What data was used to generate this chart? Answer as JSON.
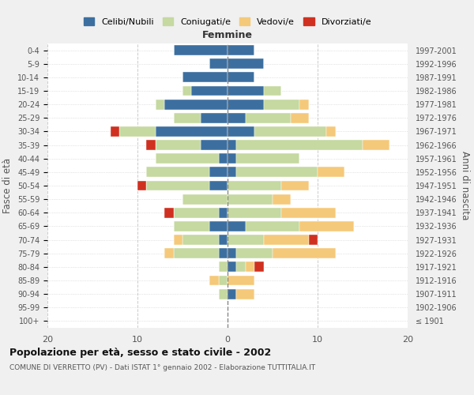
{
  "age_groups": [
    "100+",
    "95-99",
    "90-94",
    "85-89",
    "80-84",
    "75-79",
    "70-74",
    "65-69",
    "60-64",
    "55-59",
    "50-54",
    "45-49",
    "40-44",
    "35-39",
    "30-34",
    "25-29",
    "20-24",
    "15-19",
    "10-14",
    "5-9",
    "0-4"
  ],
  "birth_years": [
    "≤ 1901",
    "1902-1906",
    "1907-1911",
    "1912-1916",
    "1917-1921",
    "1922-1926",
    "1927-1931",
    "1932-1936",
    "1937-1941",
    "1942-1946",
    "1947-1951",
    "1952-1956",
    "1957-1961",
    "1962-1966",
    "1967-1971",
    "1972-1976",
    "1977-1981",
    "1982-1986",
    "1987-1991",
    "1992-1996",
    "1997-2001"
  ],
  "male": {
    "celibi": [
      0,
      0,
      0,
      0,
      0,
      1,
      1,
      2,
      1,
      0,
      2,
      2,
      1,
      3,
      8,
      3,
      7,
      4,
      5,
      2,
      6
    ],
    "coniugati": [
      0,
      0,
      1,
      1,
      1,
      5,
      4,
      4,
      5,
      5,
      7,
      7,
      7,
      5,
      4,
      3,
      1,
      1,
      0,
      0,
      0
    ],
    "vedovi": [
      0,
      0,
      0,
      1,
      0,
      1,
      1,
      0,
      0,
      0,
      0,
      0,
      0,
      0,
      0,
      0,
      0,
      0,
      0,
      0,
      0
    ],
    "divorziati": [
      0,
      0,
      0,
      0,
      0,
      0,
      0,
      0,
      1,
      0,
      1,
      0,
      0,
      1,
      1,
      0,
      0,
      0,
      0,
      0,
      0
    ]
  },
  "female": {
    "nubili": [
      0,
      0,
      1,
      0,
      1,
      1,
      0,
      2,
      0,
      0,
      0,
      1,
      1,
      1,
      3,
      2,
      4,
      4,
      3,
      4,
      3
    ],
    "coniugate": [
      0,
      0,
      0,
      0,
      1,
      4,
      4,
      6,
      6,
      5,
      6,
      9,
      7,
      14,
      8,
      5,
      4,
      2,
      0,
      0,
      0
    ],
    "vedove": [
      0,
      0,
      2,
      3,
      1,
      7,
      5,
      6,
      6,
      2,
      3,
      3,
      0,
      3,
      1,
      2,
      1,
      0,
      0,
      0,
      0
    ],
    "divorziate": [
      0,
      0,
      0,
      0,
      1,
      0,
      1,
      0,
      0,
      0,
      0,
      0,
      0,
      0,
      0,
      0,
      0,
      0,
      0,
      0,
      0
    ]
  },
  "colors": {
    "celibi": "#3c6fa0",
    "coniugati": "#c5d9a0",
    "vedovi": "#f5c97a",
    "divorziati": "#d03020"
  },
  "xlim": 20,
  "title": "Popolazione per età, sesso e stato civile - 2002",
  "subtitle": "COMUNE DI VERRETTO (PV) - Dati ISTAT 1° gennaio 2002 - Elaborazione TUTTITALIA.IT",
  "ylabel": "Fasce di età",
  "right_ylabel": "Anni di nascita",
  "legend_labels": [
    "Celibi/Nubili",
    "Coniugati/e",
    "Vedovi/e",
    "Divorziati/e"
  ],
  "bg_color": "#f0f0f0",
  "plot_bg_color": "#ffffff"
}
